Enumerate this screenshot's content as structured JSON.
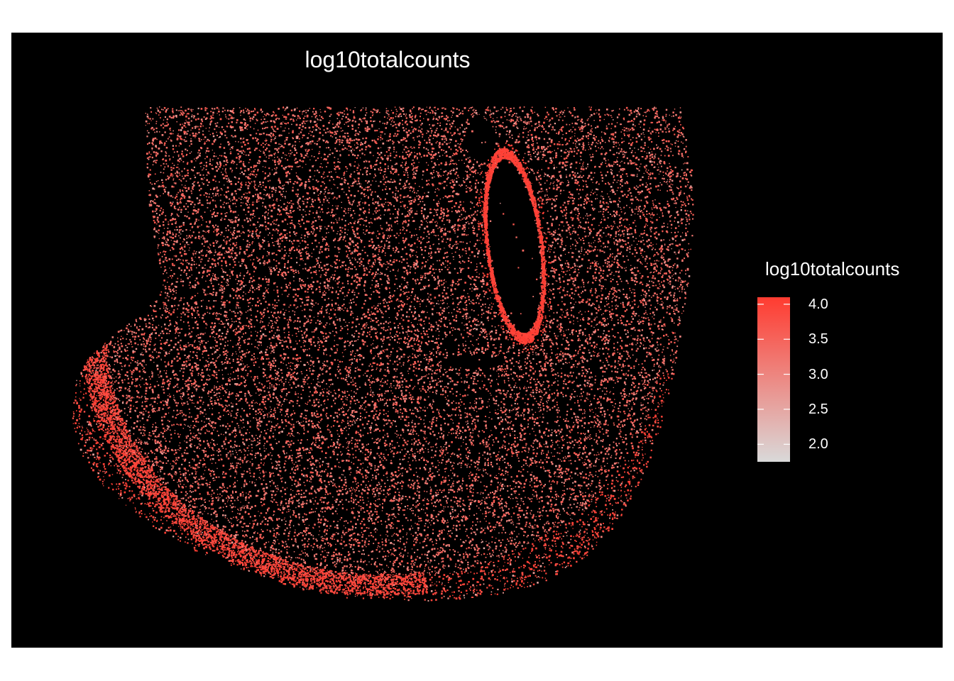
{
  "chart_data": {
    "type": "scatter",
    "title": "log10totalcounts",
    "background": "#000000",
    "color_scale": {
      "name": "log10totalcounts",
      "min": 1.75,
      "max": 4.1,
      "low_color": "#d9d9d9",
      "high_color": "#ff3b30",
      "ticks": [
        "4.0",
        "3.5",
        "3.0",
        "2.5",
        "2.0"
      ],
      "tick_values": [
        4.0,
        3.5,
        3.0,
        2.5,
        2.0
      ]
    },
    "grid": false,
    "axes": "none",
    "legend_position": "right"
  }
}
